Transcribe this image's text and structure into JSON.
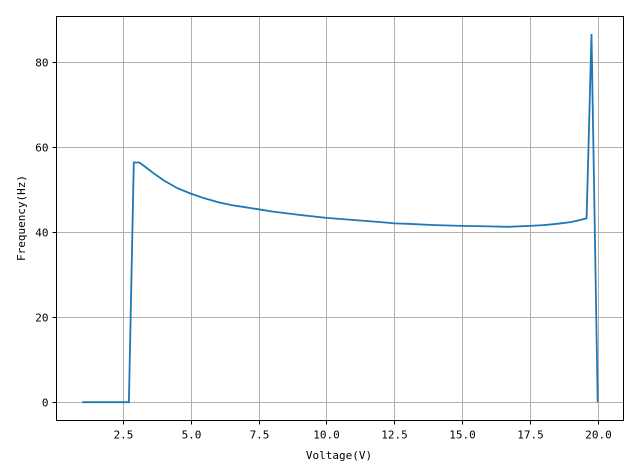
{
  "chart_data": {
    "type": "line",
    "title": "",
    "xlabel": "Voltage(V)",
    "ylabel": "Frequency(Hz)",
    "xlim": [
      0.05,
      20.95
    ],
    "ylim": [
      -4.3,
      90.6
    ],
    "xticks": [
      2.5,
      5.0,
      7.5,
      10.0,
      12.5,
      15.0,
      17.5,
      20.0
    ],
    "xtick_labels": [
      "2.5",
      "5.0",
      "7.5",
      "10.0",
      "12.5",
      "15.0",
      "17.5",
      "20.0"
    ],
    "yticks": [
      0,
      20,
      40,
      60,
      80
    ],
    "ytick_labels": [
      "0",
      "20",
      "40",
      "60",
      "80"
    ],
    "grid": true,
    "series": [
      {
        "color": "#1f77b4",
        "x": [
          1.0,
          2.72,
          2.9,
          3.1,
          3.3,
          3.6,
          4.0,
          4.5,
          5.0,
          5.5,
          6.0,
          6.5,
          7.0,
          7.5,
          8.0,
          9.0,
          10.0,
          11.0,
          12.0,
          12.5,
          13.0,
          14.0,
          15.0,
          16.0,
          16.7,
          17.5,
          18.0,
          18.5,
          19.0,
          19.3,
          19.59,
          19.77,
          20.0
        ],
        "y": [
          0,
          0,
          56.3,
          56.3,
          55.4,
          53.9,
          52.1,
          50.3,
          49.0,
          47.9,
          47.0,
          46.3,
          45.8,
          45.3,
          44.8,
          44.0,
          43.3,
          42.8,
          42.3,
          42.0,
          41.9,
          41.6,
          41.4,
          41.3,
          41.2,
          41.4,
          41.6,
          41.9,
          42.3,
          42.7,
          43.2,
          86.5,
          0
        ]
      }
    ]
  }
}
